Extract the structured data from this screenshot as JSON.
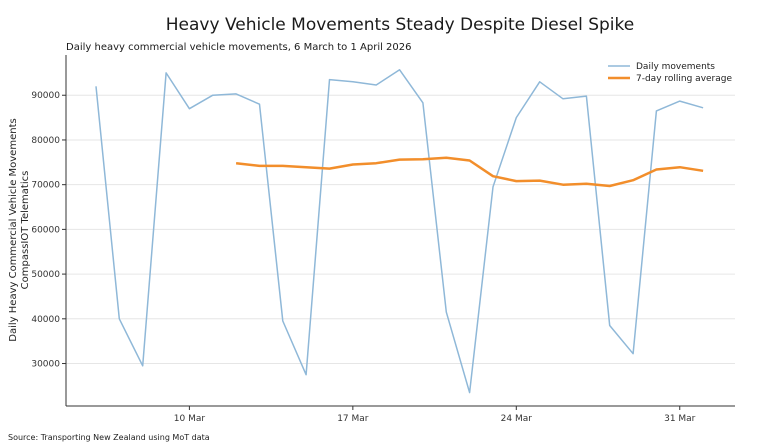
{
  "chart_data": {
    "type": "line",
    "title": "Heavy Vehicle Movements Steady Despite Diesel Spike",
    "subtitle": "Daily heavy commercial vehicle movements, 6 March to 1 April 2026",
    "ylabel_lines": [
      "Daily Heavy Commercial Vehicle Movements",
      "CompassIOT Telematics"
    ],
    "xlabel": "",
    "x": [
      "6 Mar",
      "7 Mar",
      "8 Mar",
      "9 Mar",
      "10 Mar",
      "11 Mar",
      "12 Mar",
      "13 Mar",
      "14 Mar",
      "15 Mar",
      "16 Mar",
      "17 Mar",
      "18 Mar",
      "19 Mar",
      "20 Mar",
      "21 Mar",
      "22 Mar",
      "23 Mar",
      "24 Mar",
      "25 Mar",
      "26 Mar",
      "27 Mar",
      "28 Mar",
      "29 Mar",
      "30 Mar",
      "31 Mar",
      "1 Apr"
    ],
    "x_ticks": [
      "10 Mar",
      "17 Mar",
      "24 Mar",
      "31 Mar"
    ],
    "y_ticks": [
      30000,
      40000,
      50000,
      60000,
      70000,
      80000,
      90000
    ],
    "ylim": [
      20500,
      99000
    ],
    "grid": "horizontal",
    "legend_position": "top-right",
    "series": [
      {
        "name": "Daily movements",
        "color": "#8fb8d8",
        "values": [
          92000,
          40000,
          29500,
          95000,
          87000,
          90000,
          90300,
          88000,
          39500,
          27500,
          93500,
          93000,
          92300,
          95700,
          88300,
          41500,
          23500,
          69500,
          85000,
          93000,
          89200,
          89800,
          38500,
          32200,
          86500,
          88700,
          87200
        ]
      },
      {
        "name": "7-day rolling average",
        "color": "#f28e2b",
        "values": [
          null,
          null,
          null,
          null,
          null,
          null,
          74800,
          74200,
          74200,
          73900,
          73600,
          74500,
          74800,
          75600,
          75700,
          76000,
          75400,
          71900,
          70800,
          70900,
          70000,
          70200,
          69700,
          71000,
          73400,
          73900,
          73100
        ]
      }
    ]
  },
  "source": "Source: Transporting New Zealand using MoT data"
}
